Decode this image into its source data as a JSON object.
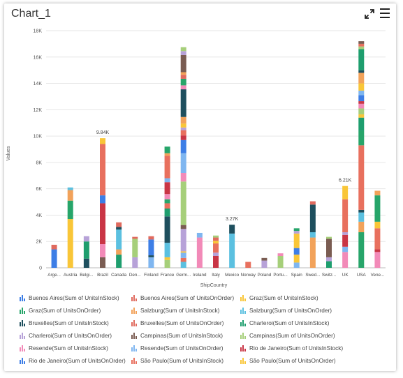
{
  "window": {
    "title": "Chart_1"
  },
  "icons": {
    "expand": "expand-icon",
    "menu": "hamburger-menu-icon"
  },
  "chart_data": {
    "type": "bar",
    "stacked": true,
    "title": "",
    "xlabel": "ShipCountry",
    "ylabel": "Values",
    "ylim": [
      0,
      18000
    ],
    "yticks": [
      "0",
      "2K",
      "4K",
      "6K",
      "8K",
      "10K",
      "12K",
      "14K",
      "16K",
      "18K"
    ],
    "grid": true,
    "legend_position": "bottom",
    "categories": [
      "Arge...",
      "Austria",
      "Belgi...",
      "Brazil",
      "Canada",
      "Den...",
      "Finland",
      "France",
      "Germ...",
      "Ireland",
      "Italy",
      "Mexico",
      "Norway",
      "Poland",
      "Portu...",
      "Spain",
      "Swed...",
      "Switz...",
      "UK",
      "USA",
      "Vene..."
    ],
    "series": [
      {
        "name": "Buenos Aires(Sum of UnitsInStock)",
        "color": "#3D7EE6",
        "values": [
          1400,
          0,
          0,
          0,
          0,
          0,
          0,
          0,
          0,
          0,
          0,
          0,
          0,
          0,
          0,
          0,
          0,
          0,
          0,
          0,
          0
        ]
      },
      {
        "name": "Buenos Aires(Sum of UnitsOnOrder)",
        "color": "#E06A5E",
        "values": [
          350,
          0,
          0,
          0,
          0,
          0,
          0,
          0,
          0,
          0,
          0,
          0,
          0,
          0,
          0,
          0,
          0,
          0,
          0,
          0,
          0
        ]
      },
      {
        "name": "Graz(Sum of UnitsInStock)",
        "color": "#F9C638",
        "values": [
          0,
          3700,
          0,
          0,
          0,
          0,
          0,
          0,
          0,
          0,
          0,
          0,
          0,
          0,
          0,
          0,
          0,
          0,
          0,
          0,
          0
        ]
      },
      {
        "name": "Graz(Sum of UnitsOnOrder)",
        "color": "#27A56A",
        "values": [
          0,
          1400,
          0,
          0,
          0,
          0,
          0,
          0,
          0,
          0,
          0,
          0,
          0,
          0,
          0,
          0,
          0,
          0,
          0,
          0,
          0
        ]
      },
      {
        "name": "Salzburg(Sum of UnitsInStock)",
        "color": "#F2A25A",
        "values": [
          0,
          800,
          0,
          0,
          0,
          0,
          0,
          0,
          0,
          0,
          0,
          0,
          0,
          0,
          0,
          0,
          0,
          0,
          0,
          0,
          0
        ]
      },
      {
        "name": "Salzburg(Sum of UnitsOnOrder)",
        "color": "#5BC0E0",
        "values": [
          0,
          200,
          0,
          0,
          0,
          0,
          0,
          0,
          0,
          0,
          0,
          0,
          0,
          0,
          0,
          0,
          0,
          0,
          0,
          0,
          0
        ]
      },
      {
        "name": "Bruxelles(Sum of UnitsInStock)",
        "color": "#1E4F5E",
        "values": [
          0,
          0,
          700,
          0,
          0,
          0,
          0,
          0,
          0,
          0,
          0,
          0,
          0,
          0,
          0,
          0,
          0,
          0,
          0,
          0,
          0
        ]
      },
      {
        "name": "Bruxelles(Sum of UnitsOnOrder)",
        "color": "#E06A5E",
        "values": [
          0,
          0,
          0,
          0,
          0,
          0,
          0,
          0,
          0,
          0,
          0,
          0,
          0,
          0,
          0,
          0,
          0,
          0,
          0,
          0,
          0
        ]
      },
      {
        "name": "Charleroi(Sum of UnitsInStock)",
        "color": "#1E9E6E",
        "values": [
          0,
          0,
          1300,
          0,
          0,
          0,
          0,
          0,
          0,
          0,
          0,
          0,
          0,
          0,
          0,
          0,
          0,
          0,
          0,
          0,
          0
        ]
      },
      {
        "name": "Charleroi(Sum of UnitsOnOrder)",
        "color": "#B7A2D8",
        "values": [
          0,
          0,
          400,
          0,
          0,
          0,
          0,
          0,
          0,
          0,
          0,
          0,
          0,
          0,
          0,
          0,
          0,
          0,
          0,
          0,
          0
        ]
      },
      {
        "name": "Campinas(Sum of UnitsInStock)",
        "color": "#7A5C52",
        "values": [
          0,
          0,
          0,
          800,
          0,
          0,
          0,
          0,
          0,
          0,
          0,
          0,
          0,
          0,
          0,
          0,
          0,
          0,
          0,
          0,
          0
        ]
      },
      {
        "name": "Campinas(Sum of UnitsOnOrder)",
        "color": "#A6CF7A",
        "values": [
          0,
          0,
          0,
          0,
          0,
          0,
          0,
          0,
          0,
          0,
          0,
          0,
          0,
          0,
          0,
          0,
          0,
          0,
          0,
          0,
          0
        ]
      },
      {
        "name": "Resende(Sum of UnitsInStock)",
        "color": "#F28AB8",
        "values": [
          0,
          0,
          0,
          1000,
          0,
          0,
          0,
          0,
          0,
          0,
          0,
          0,
          0,
          0,
          0,
          0,
          0,
          0,
          0,
          0,
          0
        ]
      },
      {
        "name": "Resende(Sum of UnitsOnOrder)",
        "color": "#7FB6F0",
        "values": [
          0,
          0,
          0,
          0,
          0,
          0,
          0,
          0,
          0,
          0,
          0,
          0,
          0,
          0,
          0,
          0,
          0,
          0,
          0,
          0,
          0
        ]
      },
      {
        "name": "Rio de Janeiro(Sum of UnitsInStock)",
        "color": "#C93545",
        "values": [
          0,
          0,
          0,
          3100,
          0,
          0,
          0,
          0,
          0,
          0,
          0,
          0,
          0,
          0,
          0,
          0,
          0,
          0,
          0,
          0,
          0
        ]
      },
      {
        "name": "Rio de Janeiro(Sum of UnitsOnOrder)",
        "color": "#3D7EE6",
        "values": [
          0,
          0,
          0,
          600,
          0,
          0,
          0,
          0,
          0,
          0,
          0,
          0,
          0,
          0,
          0,
          0,
          0,
          0,
          0,
          0,
          0
        ]
      },
      {
        "name": "São Paulo(Sum of UnitsInStock)",
        "color": "#E8705E",
        "values": [
          0,
          0,
          0,
          3900,
          0,
          0,
          0,
          0,
          0,
          0,
          0,
          0,
          0,
          0,
          0,
          0,
          0,
          0,
          0,
          0,
          0
        ]
      },
      {
        "name": "São Paulo(Sum of UnitsOnOrder)",
        "color": "#F9C638",
        "values": [
          0,
          0,
          0,
          440,
          0,
          0,
          0,
          0,
          0,
          0,
          0,
          0,
          0,
          0,
          0,
          0,
          0,
          0,
          0,
          0,
          0
        ]
      }
    ],
    "stacks": [
      {
        "category": "Arge...",
        "segments": [
          [
            "#3D7EE6",
            1400
          ],
          [
            "#E06A5E",
            350
          ]
        ]
      },
      {
        "category": "Austria",
        "segments": [
          [
            "#F9C638",
            3700
          ],
          [
            "#27A56A",
            1400
          ],
          [
            "#F2A25A",
            800
          ],
          [
            "#5BC0E0",
            200
          ]
        ]
      },
      {
        "category": "Belgi...",
        "segments": [
          [
            "#1E4F5E",
            700
          ],
          [
            "#1E9E6E",
            1300
          ],
          [
            "#B7A2D8",
            400
          ]
        ]
      },
      {
        "category": "Brazil",
        "segments": [
          [
            "#7A5C52",
            800
          ],
          [
            "#F28AB8",
            1000
          ],
          [
            "#C93545",
            3100
          ],
          [
            "#3D7EE6",
            600
          ],
          [
            "#E8705E",
            3900
          ],
          [
            "#F9C638",
            440
          ]
        ]
      },
      {
        "category": "Canada",
        "segments": [
          [
            "#1E9E6E",
            1000
          ],
          [
            "#F2A25A",
            400
          ],
          [
            "#5BC0E0",
            1500
          ],
          [
            "#1E4F5E",
            200
          ],
          [
            "#E06A5E",
            350
          ]
        ]
      },
      {
        "category": "Den...",
        "segments": [
          [
            "#B7A2D8",
            800
          ],
          [
            "#A6CF7A",
            1400
          ],
          [
            "#E06A5E",
            150
          ]
        ]
      },
      {
        "category": "Finland",
        "segments": [
          [
            "#7FB6F0",
            800
          ],
          [
            "#1E4F5E",
            150
          ],
          [
            "#3D7EE6",
            1200
          ],
          [
            "#E06A5E",
            250
          ]
        ]
      },
      {
        "category": "France",
        "segments": [
          [
            "#A6CF7A",
            600
          ],
          [
            "#F9C638",
            200
          ],
          [
            "#5BC0E0",
            1100
          ],
          [
            "#1E4F5E",
            2000
          ],
          [
            "#1E9E6E",
            600
          ],
          [
            "#E8705E",
            400
          ],
          [
            "#27A56A",
            300
          ],
          [
            "#F28AB8",
            400
          ],
          [
            "#C93545",
            900
          ],
          [
            "#7FB6F0",
            300
          ],
          [
            "#E8705E",
            1700
          ],
          [
            "#F2A25A",
            200
          ],
          [
            "#27A56A",
            500
          ]
        ]
      },
      {
        "category": "Germ...",
        "segments": [
          [
            "#5BC0E0",
            450
          ],
          [
            "#E8705E",
            300
          ],
          [
            "#7FB6F0",
            400
          ],
          [
            "#F9C638",
            100
          ],
          [
            "#B7A2D8",
            1700
          ],
          [
            "#7A5C52",
            300
          ],
          [
            "#A6CF7A",
            3300
          ],
          [
            "#F28AB8",
            650
          ],
          [
            "#7FB6F0",
            1500
          ],
          [
            "#3D7EE6",
            1000
          ],
          [
            "#C93545",
            350
          ],
          [
            "#E8705E",
            400
          ],
          [
            "#B7A2D8",
            200
          ],
          [
            "#F9C638",
            300
          ],
          [
            "#F2A25A",
            500
          ],
          [
            "#1E4F5E",
            2100
          ],
          [
            "#F28AB8",
            300
          ],
          [
            "#27A56A",
            500
          ],
          [
            "#E06A5E",
            300
          ],
          [
            "#F2A25A",
            200
          ],
          [
            "#7A5C52",
            1300
          ],
          [
            "#B7A2D8",
            300
          ],
          [
            "#A6CF7A",
            300
          ]
        ]
      },
      {
        "category": "Ireland",
        "segments": [
          [
            "#F28AB8",
            2300
          ],
          [
            "#7FB6F0",
            350
          ]
        ]
      },
      {
        "category": "Italy",
        "segments": [
          [
            "#C93545",
            900
          ],
          [
            "#B7A2D8",
            250
          ],
          [
            "#E8705E",
            700
          ],
          [
            "#F9C638",
            200
          ],
          [
            "#E06A5E",
            250
          ],
          [
            "#A6CF7A",
            150
          ]
        ]
      },
      {
        "category": "Mexico",
        "segments": [
          [
            "#5BC0E0",
            2600
          ],
          [
            "#1E4F5E",
            670
          ]
        ]
      },
      {
        "category": "Norway",
        "segments": [
          [
            "#E8705E",
            450
          ]
        ]
      },
      {
        "category": "Poland",
        "segments": [
          [
            "#B7A2D8",
            550
          ],
          [
            "#7A5C52",
            200
          ]
        ]
      },
      {
        "category": "Portu...",
        "segments": [
          [
            "#A6CF7A",
            900
          ],
          [
            "#F28AB8",
            200
          ]
        ]
      },
      {
        "category": "Spain",
        "segments": [
          [
            "#7FB6F0",
            400
          ],
          [
            "#F9C638",
            600
          ],
          [
            "#3D7EE6",
            500
          ],
          [
            "#F9C638",
            1100
          ],
          [
            "#B7A2D8",
            200
          ],
          [
            "#27A56A",
            200
          ]
        ]
      },
      {
        "category": "Swed...",
        "segments": [
          [
            "#F2A25A",
            2300
          ],
          [
            "#5BC0E0",
            400
          ],
          [
            "#1E4F5E",
            2100
          ],
          [
            "#E06A5E",
            250
          ]
        ]
      },
      {
        "category": "Switz...",
        "segments": [
          [
            "#1E9E6E",
            500
          ],
          [
            "#B7A2D8",
            300
          ],
          [
            "#7A5C52",
            1400
          ],
          [
            "#A6CF7A",
            150
          ]
        ]
      },
      {
        "category": "UK",
        "segments": [
          [
            "#F28AB8",
            1200
          ],
          [
            "#7FB6F0",
            400
          ],
          [
            "#C93545",
            900
          ],
          [
            "#B7A2D8",
            200
          ],
          [
            "#E8705E",
            2500
          ],
          [
            "#F9C638",
            1010
          ]
        ]
      },
      {
        "category": "USA",
        "segments": [
          [
            "#27A56A",
            2700
          ],
          [
            "#F2A25A",
            800
          ],
          [
            "#5BC0E0",
            700
          ],
          [
            "#1E4F5E",
            200
          ],
          [
            "#E8705E",
            4900
          ],
          [
            "#27A56A",
            1100
          ],
          [
            "#1E9E6E",
            1000
          ],
          [
            "#F9C638",
            250
          ],
          [
            "#A6CF7A",
            450
          ],
          [
            "#F28AB8",
            350
          ],
          [
            "#C93545",
            200
          ],
          [
            "#3D7EE6",
            450
          ],
          [
            "#7FB6F0",
            350
          ],
          [
            "#F9C638",
            550
          ],
          [
            "#F2A25A",
            800
          ],
          [
            "#1E4F5E",
            200
          ],
          [
            "#1E9E6E",
            1600
          ],
          [
            "#A6CF7A",
            200
          ],
          [
            "#E8705E",
            200
          ],
          [
            "#7A5C52",
            200
          ]
        ]
      },
      {
        "category": "Vene...",
        "segments": [
          [
            "#F28AB8",
            1200
          ],
          [
            "#C93545",
            200
          ],
          [
            "#E8705E",
            1600
          ],
          [
            "#F9C638",
            500
          ],
          [
            "#27A56A",
            2000
          ],
          [
            "#F2A25A",
            350
          ]
        ]
      }
    ],
    "annotations": [
      {
        "category": "Brazil",
        "value": 9840,
        "text": "9.84K"
      },
      {
        "category": "Mexico",
        "value": 3270,
        "text": "3.27K"
      },
      {
        "category": "UK",
        "value": 6210,
        "text": "6.21K"
      }
    ]
  },
  "legend": {
    "items": [
      {
        "label": "Buenos Aires(Sum of UnitsInStock)",
        "color": "#3D7EE6"
      },
      {
        "label": "Buenos Aires(Sum of UnitsOnOrder)",
        "color": "#E06A5E"
      },
      {
        "label": "Graz(Sum of UnitsInStock)",
        "color": "#F9C638"
      },
      {
        "label": "Graz(Sum of UnitsOnOrder)",
        "color": "#27A56A"
      },
      {
        "label": "Salzburg(Sum of UnitsInStock)",
        "color": "#F2A25A"
      },
      {
        "label": "Salzburg(Sum of UnitsOnOrder)",
        "color": "#5BC0E0"
      },
      {
        "label": "Bruxelles(Sum of UnitsInStock)",
        "color": "#1E4F5E"
      },
      {
        "label": "Bruxelles(Sum of UnitsOnOrder)",
        "color": "#E06A5E"
      },
      {
        "label": "Charleroi(Sum of UnitsInStock)",
        "color": "#1E9E6E"
      },
      {
        "label": "Charleroi(Sum of UnitsOnOrder)",
        "color": "#B7A2D8"
      },
      {
        "label": "Campinas(Sum of UnitsInStock)",
        "color": "#7A5C52"
      },
      {
        "label": "Campinas(Sum of UnitsOnOrder)",
        "color": "#A6CF7A"
      },
      {
        "label": "Resende(Sum of UnitsInStock)",
        "color": "#F28AB8"
      },
      {
        "label": "Resende(Sum of UnitsOnOrder)",
        "color": "#7FB6F0"
      },
      {
        "label": "Rio de Janeiro(Sum of UnitsInStock)",
        "color": "#C93545"
      },
      {
        "label": "Rio de Janeiro(Sum of UnitsOnOrder)",
        "color": "#3D7EE6"
      },
      {
        "label": "São Paulo(Sum of UnitsInStock)",
        "color": "#E8705E"
      },
      {
        "label": "São Paulo(Sum of UnitsOnOrder)",
        "color": "#F9C638"
      }
    ]
  }
}
